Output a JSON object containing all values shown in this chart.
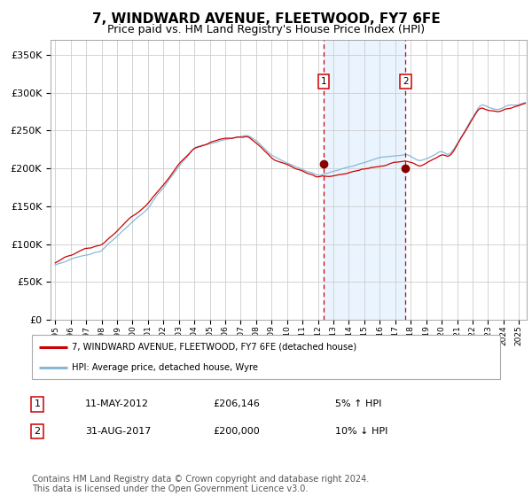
{
  "title": "7, WINDWARD AVENUE, FLEETWOOD, FY7 6FE",
  "subtitle": "Price paid vs. HM Land Registry's House Price Index (HPI)",
  "title_fontsize": 11,
  "subtitle_fontsize": 9,
  "ylabel_ticks": [
    "£0",
    "£50K",
    "£100K",
    "£150K",
    "£200K",
    "£250K",
    "£300K",
    "£350K"
  ],
  "ytick_vals": [
    0,
    50000,
    100000,
    150000,
    200000,
    250000,
    300000,
    350000
  ],
  "ylim": [
    0,
    370000
  ],
  "xlim_start": 1994.7,
  "xlim_end": 2025.5,
  "grid_color": "#cccccc",
  "red_line_color": "#cc0000",
  "blue_line_color": "#88b8d8",
  "shade_color": "#ddeeff",
  "dashed_line_color": "#cc0000",
  "marker_color": "#880000",
  "sale1_x": 2012.36,
  "sale1_y": 206146,
  "sale2_x": 2017.66,
  "sale2_y": 200000,
  "legend_line1": "7, WINDWARD AVENUE, FLEETWOOD, FY7 6FE (detached house)",
  "legend_line2": "HPI: Average price, detached house, Wyre",
  "table_row1": [
    "1",
    "11-MAY-2012",
    "£206,146",
    "5% ↑ HPI"
  ],
  "table_row2": [
    "2",
    "31-AUG-2017",
    "£200,000",
    "10% ↓ HPI"
  ],
  "footer": "Contains HM Land Registry data © Crown copyright and database right 2024.\nThis data is licensed under the Open Government Licence v3.0."
}
